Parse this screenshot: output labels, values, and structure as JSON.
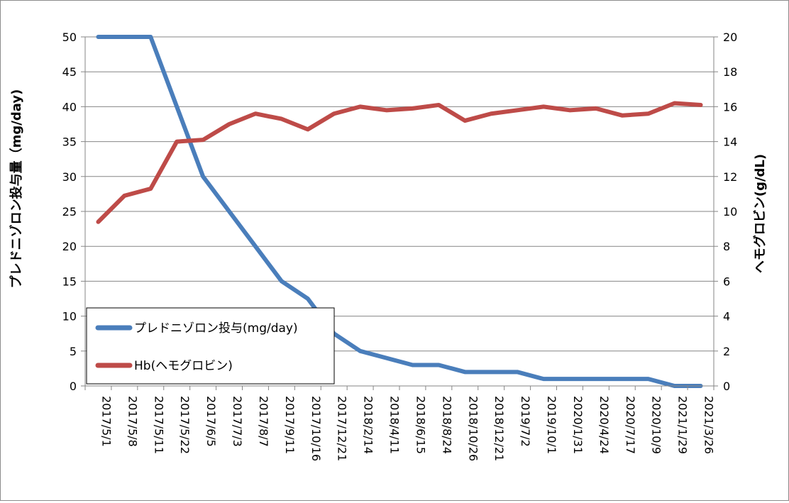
{
  "chart_data": {
    "type": "line",
    "title": "",
    "ylabel_left": "プレドニゾロン投与量（mg/day)",
    "ylabel_right": "ヘモグロビン(g/dL)",
    "ylim_left": [
      0,
      50
    ],
    "ylim_right": [
      0,
      20
    ],
    "yticks_left": [
      0,
      5,
      10,
      15,
      20,
      25,
      30,
      35,
      40,
      45,
      50
    ],
    "yticks_right": [
      0,
      2,
      4,
      6,
      8,
      10,
      12,
      14,
      16,
      18,
      20
    ],
    "grid": "horizontal",
    "legend_position": "lower-left inside plot",
    "categories": [
      "2017/5/1",
      "2017/5/8",
      "2017/5/11",
      "2017/5/22",
      "2017/6/5",
      "2017/7/3",
      "2017/8/7",
      "2017/9/11",
      "2017/10/16",
      "2017/12/21",
      "2018/2/14",
      "2018/4/11",
      "2018/6/15",
      "2018/8/24",
      "2018/10/26",
      "2018/12/21",
      "2019/7/2",
      "2019/10/1",
      "2020/1/31",
      "2020/4/24",
      "2020/7/17",
      "2020/10/9",
      "2021/1/29",
      "2021/3/26"
    ],
    "series": [
      {
        "name": "プレドニゾロン投与(mg/day)",
        "axis": "left",
        "color": "#4a7ebb",
        "start_offset": 0.0,
        "values": [
          50,
          50,
          50,
          40,
          30,
          25,
          20,
          15,
          12.5,
          7.5,
          5,
          4,
          3,
          3,
          2,
          2,
          2,
          1,
          1,
          1,
          1,
          1,
          0,
          0
        ]
      },
      {
        "name": "Hb(ヘモグロビン)",
        "axis": "right",
        "color": "#be4b48",
        "start_offset": 0.0,
        "values": [
          9.4,
          10.9,
          11.3,
          14.0,
          14.1,
          15.0,
          15.6,
          15.3,
          14.7,
          15.6,
          16.0,
          15.8,
          15.9,
          16.1,
          15.2,
          15.6,
          15.8,
          16.0,
          15.8,
          15.9,
          15.5,
          15.6,
          16.2,
          16.1
        ]
      }
    ]
  }
}
